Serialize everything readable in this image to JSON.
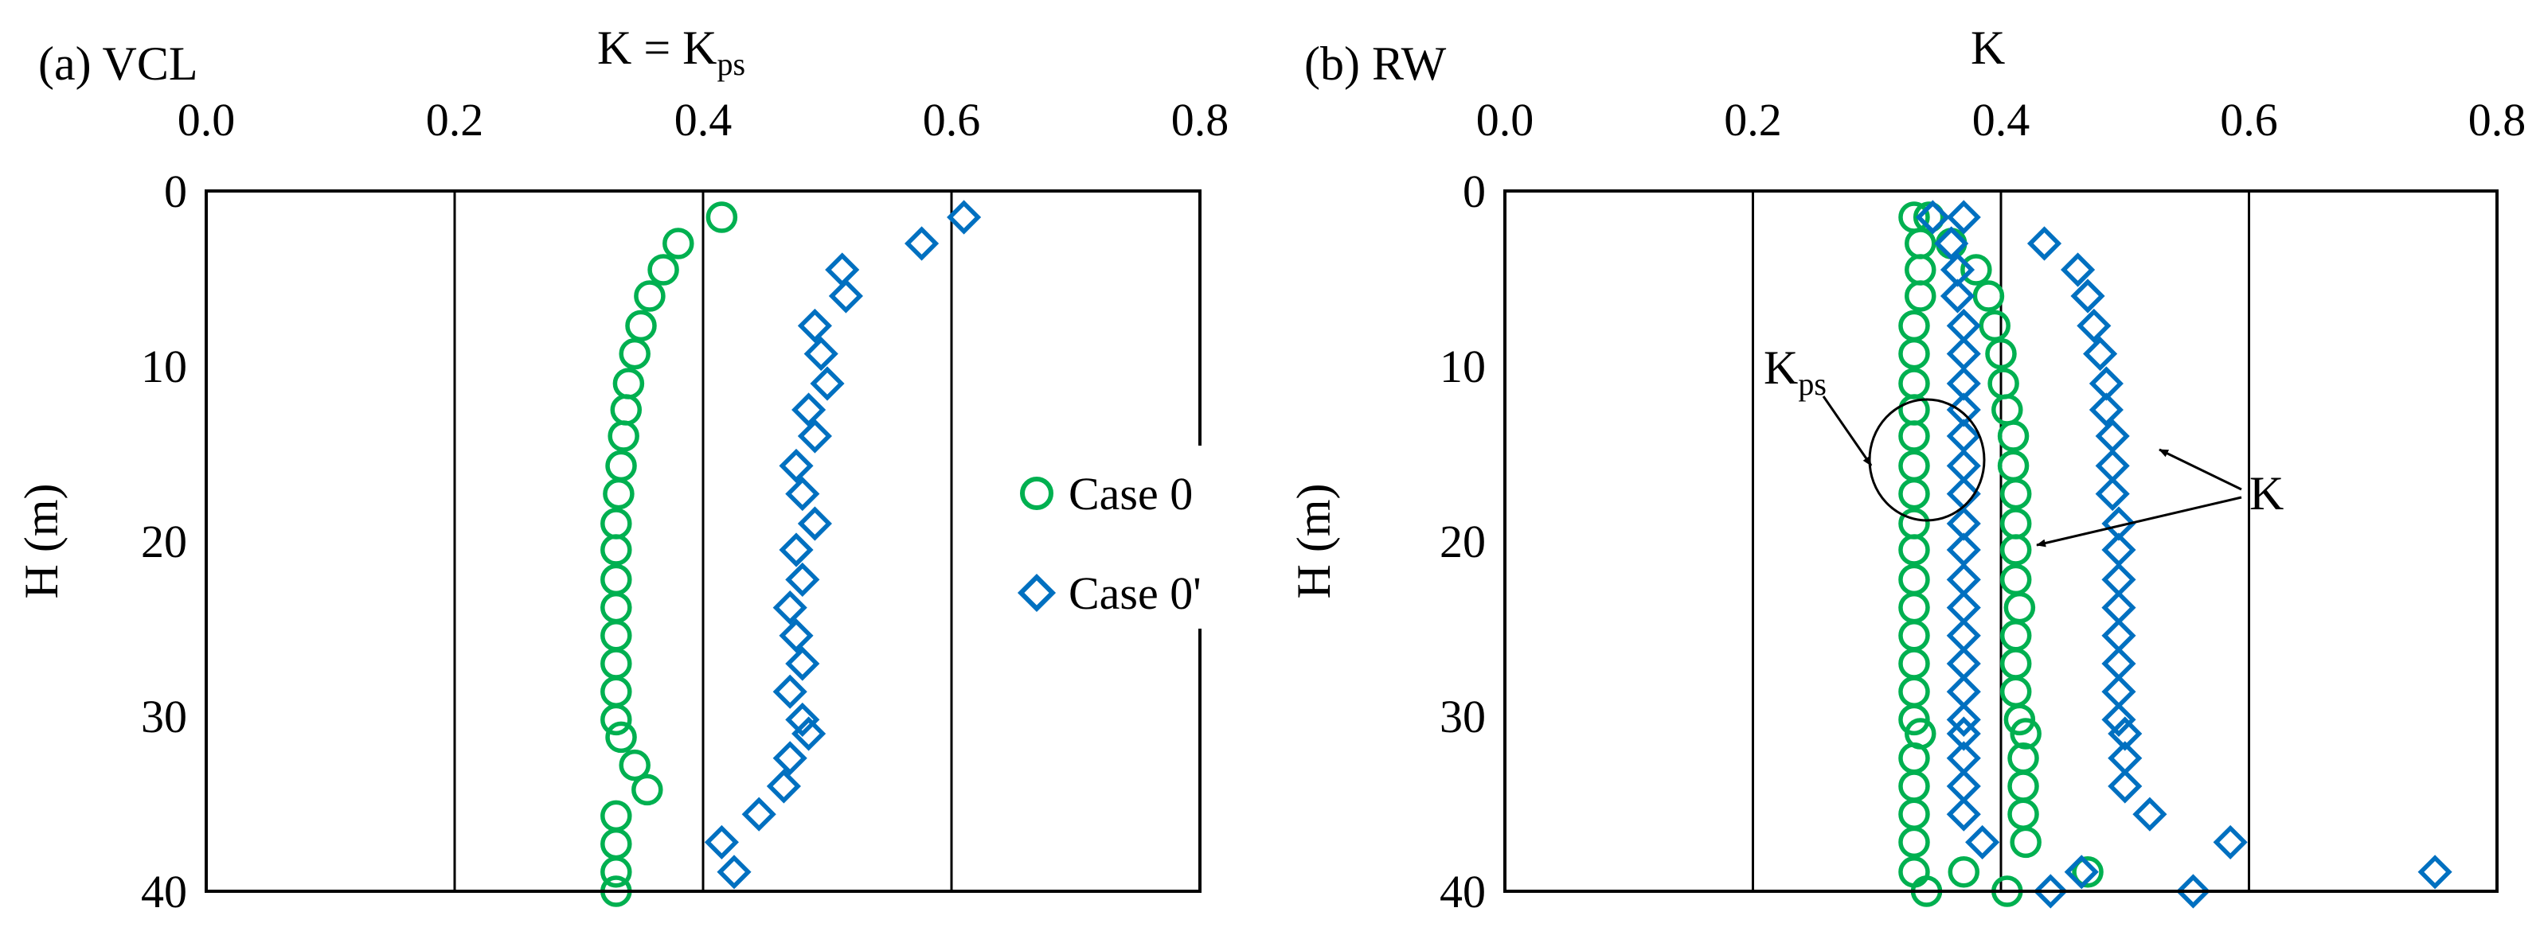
{
  "colors": {
    "case0": "#00B050",
    "case0p": "#0070C0",
    "axis": "#000000"
  },
  "chart_data": [
    {
      "type": "scatter",
      "panel_label": "(a) VCL",
      "title": {
        "main": "K = K",
        "subscript": "ps"
      },
      "xlabel": "",
      "ylabel": "H (m)",
      "xlim": [
        0.0,
        0.8
      ],
      "ylim": [
        0,
        40
      ],
      "y_inverted": true,
      "x_axis_position": "top",
      "xticks": [
        "0.0",
        "0.2",
        "0.4",
        "0.6",
        "0.8"
      ],
      "yticks": [
        "0",
        "10",
        "20",
        "30",
        "40"
      ],
      "xgrid": true,
      "ygrid": false,
      "legend": {
        "placement": "right",
        "entries": [
          "Case 0",
          "Case 0'"
        ]
      },
      "series": [
        {
          "name": "Case 0",
          "marker": "circle",
          "points": [
            [
              0.415,
              1.5
            ],
            [
              0.38,
              3
            ],
            [
              0.368,
              4.5
            ],
            [
              0.357,
              6
            ],
            [
              0.35,
              7.7
            ],
            [
              0.345,
              9.3
            ],
            [
              0.34,
              11
            ],
            [
              0.338,
              12.5
            ],
            [
              0.336,
              14
            ],
            [
              0.334,
              15.7
            ],
            [
              0.332,
              17.3
            ],
            [
              0.33,
              19
            ],
            [
              0.33,
              20.5
            ],
            [
              0.33,
              22.2
            ],
            [
              0.33,
              23.8
            ],
            [
              0.33,
              25.4
            ],
            [
              0.33,
              27
            ],
            [
              0.33,
              28.6
            ],
            [
              0.33,
              30.2
            ],
            [
              0.334,
              31.2
            ],
            [
              0.345,
              32.8
            ],
            [
              0.355,
              34.2
            ],
            [
              0.33,
              35.7
            ],
            [
              0.33,
              37.3
            ],
            [
              0.33,
              38.9
            ],
            [
              0.33,
              40
            ]
          ]
        },
        {
          "name": "Case 0'",
          "marker": "diamond",
          "points": [
            [
              0.61,
              1.5
            ],
            [
              0.576,
              3
            ],
            [
              0.512,
              4.5
            ],
            [
              0.515,
              6
            ],
            [
              0.49,
              7.7
            ],
            [
              0.495,
              9.3
            ],
            [
              0.5,
              11
            ],
            [
              0.485,
              12.5
            ],
            [
              0.49,
              14
            ],
            [
              0.475,
              15.7
            ],
            [
              0.48,
              17.3
            ],
            [
              0.49,
              19
            ],
            [
              0.475,
              20.5
            ],
            [
              0.48,
              22.2
            ],
            [
              0.47,
              23.8
            ],
            [
              0.475,
              25.4
            ],
            [
              0.48,
              27
            ],
            [
              0.47,
              28.6
            ],
            [
              0.48,
              30.2
            ],
            [
              0.485,
              31
            ],
            [
              0.47,
              32.4
            ],
            [
              0.465,
              34
            ],
            [
              0.445,
              35.6
            ],
            [
              0.415,
              37.2
            ],
            [
              0.425,
              38.9
            ]
          ]
        }
      ]
    },
    {
      "type": "scatter",
      "panel_label": "(b) RW",
      "title": {
        "main": "K",
        "subscript": ""
      },
      "xlabel": "",
      "ylabel": "H (m)",
      "xlim": [
        0.0,
        0.8
      ],
      "ylim": [
        0,
        40
      ],
      "y_inverted": true,
      "x_axis_position": "top",
      "xticks": [
        "0.0",
        "0.2",
        "0.4",
        "0.6",
        "0.8"
      ],
      "yticks": [
        "0",
        "10",
        "20",
        "30",
        "40"
      ],
      "xgrid": true,
      "ygrid": false,
      "annotations": [
        {
          "text": "K",
          "subscript": "ps",
          "target_x": 0.34,
          "target_y": 17
        },
        {
          "text": "K",
          "subscript": "",
          "targets": [
            [
              0.53,
              15
            ],
            [
              0.41,
              20
            ]
          ]
        }
      ],
      "series": [
        {
          "name": "Case 0 (K_ps)",
          "marker": "circle",
          "points": [
            [
              0.33,
              1.5
            ],
            [
              0.335,
              3
            ],
            [
              0.335,
              4.5
            ],
            [
              0.335,
              6
            ],
            [
              0.33,
              7.7
            ],
            [
              0.33,
              9.3
            ],
            [
              0.33,
              11
            ],
            [
              0.33,
              12.5
            ],
            [
              0.33,
              14
            ],
            [
              0.33,
              15.7
            ],
            [
              0.33,
              17.3
            ],
            [
              0.33,
              19
            ],
            [
              0.33,
              20.5
            ],
            [
              0.33,
              22.2
            ],
            [
              0.33,
              23.8
            ],
            [
              0.33,
              25.4
            ],
            [
              0.33,
              27
            ],
            [
              0.33,
              28.6
            ],
            [
              0.33,
              30.2
            ],
            [
              0.335,
              31
            ],
            [
              0.33,
              32.4
            ],
            [
              0.33,
              34
            ],
            [
              0.33,
              35.6
            ],
            [
              0.33,
              37.2
            ],
            [
              0.33,
              38.9
            ],
            [
              0.34,
              40
            ]
          ]
        },
        {
          "name": "Case 0 (K)",
          "marker": "circle",
          "points": [
            [
              0.342,
              1.5
            ],
            [
              0.36,
              3
            ],
            [
              0.38,
              4.5
            ],
            [
              0.39,
              6
            ],
            [
              0.395,
              7.7
            ],
            [
              0.4,
              9.3
            ],
            [
              0.402,
              11
            ],
            [
              0.405,
              12.5
            ],
            [
              0.41,
              14
            ],
            [
              0.41,
              15.7
            ],
            [
              0.412,
              17.3
            ],
            [
              0.412,
              19
            ],
            [
              0.412,
              20.5
            ],
            [
              0.412,
              22.2
            ],
            [
              0.415,
              23.8
            ],
            [
              0.412,
              25.4
            ],
            [
              0.412,
              27
            ],
            [
              0.412,
              28.6
            ],
            [
              0.415,
              30.2
            ],
            [
              0.42,
              31
            ],
            [
              0.418,
              32.4
            ],
            [
              0.418,
              34
            ],
            [
              0.418,
              35.6
            ],
            [
              0.42,
              37.2
            ],
            [
              0.47,
              38.9
            ],
            [
              0.37,
              38.9
            ],
            [
              0.405,
              40
            ]
          ]
        },
        {
          "name": "Case 0' (K_ps)",
          "marker": "diamond",
          "points": [
            [
              0.345,
              1.5
            ],
            [
              0.36,
              3
            ],
            [
              0.365,
              4.5
            ],
            [
              0.365,
              6
            ],
            [
              0.37,
              7.7
            ],
            [
              0.37,
              9.3
            ],
            [
              0.37,
              11
            ],
            [
              0.37,
              12.5
            ],
            [
              0.37,
              14
            ],
            [
              0.37,
              15.7
            ],
            [
              0.37,
              17.3
            ],
            [
              0.37,
              19
            ],
            [
              0.37,
              20.5
            ],
            [
              0.37,
              22.2
            ],
            [
              0.37,
              23.8
            ],
            [
              0.37,
              25.4
            ],
            [
              0.37,
              27
            ],
            [
              0.37,
              28.6
            ],
            [
              0.37,
              30.2
            ],
            [
              0.37,
              31
            ],
            [
              0.37,
              32.4
            ],
            [
              0.37,
              34
            ],
            [
              0.37,
              35.6
            ],
            [
              0.385,
              37.2
            ],
            [
              0.465,
              38.9
            ],
            [
              0.44,
              40
            ]
          ]
        },
        {
          "name": "Case 0' (K)",
          "marker": "diamond",
          "points": [
            [
              0.37,
              1.5
            ],
            [
              0.435,
              3
            ],
            [
              0.462,
              4.5
            ],
            [
              0.47,
              6
            ],
            [
              0.475,
              7.7
            ],
            [
              0.48,
              9.3
            ],
            [
              0.485,
              11
            ],
            [
              0.485,
              12.5
            ],
            [
              0.49,
              14
            ],
            [
              0.49,
              15.7
            ],
            [
              0.49,
              17.3
            ],
            [
              0.495,
              19
            ],
            [
              0.495,
              20.5
            ],
            [
              0.495,
              22.2
            ],
            [
              0.495,
              23.8
            ],
            [
              0.495,
              25.4
            ],
            [
              0.495,
              27
            ],
            [
              0.495,
              28.6
            ],
            [
              0.495,
              30.2
            ],
            [
              0.5,
              31
            ],
            [
              0.5,
              32.4
            ],
            [
              0.5,
              34
            ],
            [
              0.52,
              35.6
            ],
            [
              0.585,
              37.2
            ],
            [
              0.75,
              38.9
            ],
            [
              0.555,
              40
            ]
          ]
        }
      ]
    }
  ]
}
